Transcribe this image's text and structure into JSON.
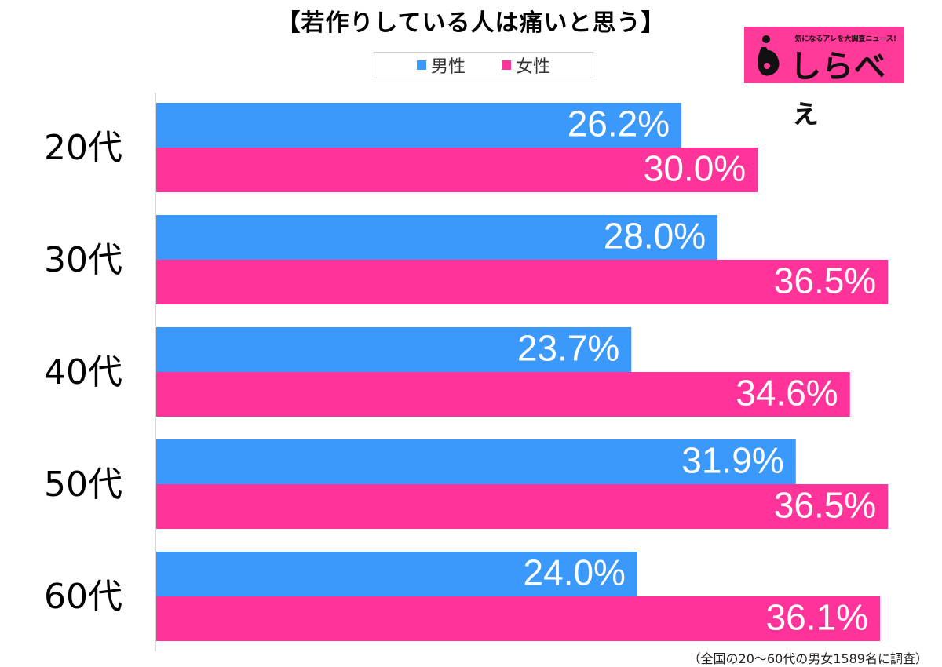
{
  "title": "【若作りしている人は痛いと思う】",
  "legend": [
    {
      "label": "男性",
      "color": "#3a99fb"
    },
    {
      "label": "女性",
      "color": "#ff3399"
    }
  ],
  "logo": {
    "tagline": "気になるアレを大調査ニュース!",
    "text": "しらべぇ",
    "background": "#ff3a99"
  },
  "note": "（全国の20～60代の男女1589名に調査）",
  "chart_data": {
    "type": "bar",
    "orientation": "horizontal",
    "categories": [
      "20代",
      "30代",
      "40代",
      "50代",
      "60代"
    ],
    "series": [
      {
        "name": "男性",
        "color": "#3a99fb",
        "values": [
          26.2,
          28.0,
          23.7,
          31.9,
          24.0
        ],
        "labels": [
          "26.2%",
          "28.0%",
          "23.7%",
          "31.9%",
          "24.0%"
        ]
      },
      {
        "name": "女性",
        "color": "#ff3399",
        "values": [
          30.0,
          36.5,
          34.6,
          36.5,
          36.1
        ],
        "labels": [
          "30.0%",
          "36.5%",
          "34.6%",
          "36.5%",
          "36.1%"
        ]
      }
    ],
    "xlim": [
      0,
      37
    ],
    "legend_position": "top-center",
    "grid": false
  }
}
